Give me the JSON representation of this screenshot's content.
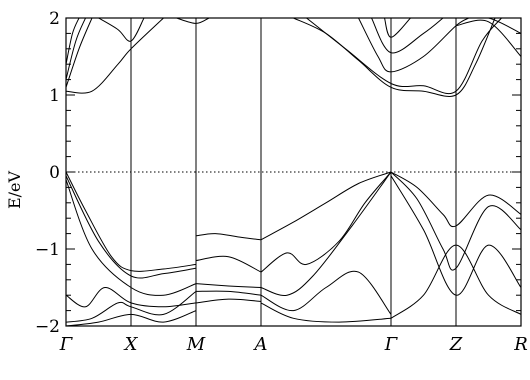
{
  "chart_data": {
    "type": "line",
    "title": "",
    "ylabel": "E/eV",
    "xlabel": "",
    "ylim": [
      -2,
      2
    ],
    "yticks": [
      -2,
      -1,
      0,
      1,
      2
    ],
    "ytick_labels": [
      "−2",
      "−1",
      "0",
      "1",
      "2"
    ],
    "xlim": [
      0,
      7
    ],
    "kpoints": [
      {
        "label": "Γ",
        "x": 0
      },
      {
        "label": "X",
        "x": 1
      },
      {
        "label": "M",
        "x": 2
      },
      {
        "label": "A",
        "x": 3
      },
      {
        "label": "Γ",
        "x": 5
      },
      {
        "label": "Z",
        "x": 6
      },
      {
        "label": "R",
        "x": 7
      }
    ],
    "fermi_level": 0,
    "grid": false,
    "series": [
      {
        "values": [
          [
            0,
            0
          ],
          [
            0.3,
            -0.5
          ],
          [
            0.7,
            -1.1
          ],
          [
            1.0,
            -1.28
          ],
          [
            1.5,
            -1.26
          ],
          [
            2.0,
            -1.2
          ]
        ]
      },
      {
        "values": [
          [
            0,
            -0.05
          ],
          [
            0.5,
            -0.9
          ],
          [
            1.0,
            -1.35
          ],
          [
            1.5,
            -1.32
          ],
          [
            2.0,
            -1.25
          ]
        ]
      },
      {
        "values": [
          [
            0,
            -0.1
          ],
          [
            0.4,
            -1.0
          ],
          [
            1.0,
            -1.5
          ],
          [
            1.5,
            -1.6
          ],
          [
            2.0,
            -1.45
          ]
        ]
      },
      {
        "values": [
          [
            0,
            -1.6
          ],
          [
            0.3,
            -1.75
          ],
          [
            0.6,
            -1.5
          ],
          [
            1.0,
            -1.7
          ],
          [
            1.5,
            -1.75
          ],
          [
            2.0,
            -1.7
          ]
        ]
      },
      {
        "values": [
          [
            0,
            -1.95
          ],
          [
            0.4,
            -1.9
          ],
          [
            0.8,
            -1.7
          ],
          [
            1.0,
            -1.75
          ],
          [
            1.5,
            -1.85
          ],
          [
            2.0,
            -1.55
          ]
        ]
      },
      {
        "values": [
          [
            0,
            -2.0
          ],
          [
            0.5,
            -1.95
          ],
          [
            1.0,
            -1.85
          ],
          [
            1.5,
            -1.95
          ],
          [
            2.0,
            -1.8
          ]
        ]
      },
      {
        "values": [
          [
            2.0,
            -0.83
          ],
          [
            2.3,
            -0.8
          ],
          [
            2.7,
            -0.85
          ],
          [
            3.0,
            -0.88
          ]
        ]
      },
      {
        "values": [
          [
            2.0,
            -1.15
          ],
          [
            2.5,
            -1.1
          ],
          [
            3.0,
            -1.3
          ]
        ]
      },
      {
        "values": [
          [
            2.0,
            -1.45
          ],
          [
            2.5,
            -1.48
          ],
          [
            3.0,
            -1.5
          ]
        ]
      },
      {
        "values": [
          [
            2.0,
            -1.55
          ],
          [
            2.5,
            -1.55
          ],
          [
            3.0,
            -1.6
          ]
        ]
      },
      {
        "values": [
          [
            2.0,
            -1.7
          ],
          [
            2.5,
            -1.65
          ],
          [
            3.0,
            -1.68
          ]
        ]
      },
      {
        "values": [
          [
            3.0,
            -0.88
          ],
          [
            3.5,
            -0.65
          ],
          [
            4.0,
            -0.4
          ],
          [
            4.5,
            -0.15
          ],
          [
            5.0,
            0
          ]
        ]
      },
      {
        "values": [
          [
            3.0,
            -1.3
          ],
          [
            3.4,
            -1.05
          ],
          [
            3.7,
            -1.2
          ],
          [
            4.2,
            -0.9
          ],
          [
            4.6,
            -0.4
          ],
          [
            5.0,
            0
          ]
        ]
      },
      {
        "values": [
          [
            3.0,
            -1.5
          ],
          [
            3.4,
            -1.6
          ],
          [
            3.8,
            -1.35
          ],
          [
            4.4,
            -0.7
          ],
          [
            5.0,
            0
          ]
        ]
      },
      {
        "values": [
          [
            3.0,
            -1.6
          ],
          [
            3.5,
            -1.8
          ],
          [
            4.0,
            -1.5
          ],
          [
            4.5,
            -1.3
          ],
          [
            5.0,
            -1.85
          ]
        ]
      },
      {
        "values": [
          [
            3.0,
            -1.7
          ],
          [
            3.5,
            -1.9
          ],
          [
            4.2,
            -1.95
          ],
          [
            5.0,
            -1.9
          ]
        ]
      },
      {
        "values": [
          [
            5.0,
            0
          ],
          [
            5.4,
            -0.2
          ],
          [
            5.8,
            -0.55
          ],
          [
            6.0,
            -0.7
          ],
          [
            6.5,
            -0.3
          ],
          [
            7.0,
            -0.55
          ]
        ]
      },
      {
        "values": [
          [
            5.0,
            0
          ],
          [
            5.4,
            -0.35
          ],
          [
            5.8,
            -1.0
          ],
          [
            6.0,
            -1.25
          ],
          [
            6.5,
            -0.45
          ],
          [
            7.0,
            -0.75
          ]
        ]
      },
      {
        "values": [
          [
            5.0,
            -0.05
          ],
          [
            5.5,
            -0.75
          ],
          [
            6.0,
            -1.6
          ],
          [
            6.5,
            -0.95
          ],
          [
            7.0,
            -1.5
          ]
        ]
      },
      {
        "values": [
          [
            5.0,
            -1.9
          ],
          [
            5.5,
            -1.6
          ],
          [
            6.0,
            -0.95
          ],
          [
            6.5,
            -1.6
          ],
          [
            7.0,
            -1.85
          ]
        ]
      },
      {
        "values": [
          [
            0,
            1.05
          ],
          [
            0.4,
            1.05
          ],
          [
            0.8,
            1.4
          ],
          [
            1.0,
            1.6
          ],
          [
            1.5,
            2.0
          ]
        ]
      },
      {
        "values": [
          [
            0,
            1.1
          ],
          [
            0.2,
            1.6
          ],
          [
            0.4,
            2.0
          ]
        ]
      },
      {
        "values": [
          [
            0,
            1.2
          ],
          [
            0.15,
            1.7
          ],
          [
            0.3,
            2.0
          ]
        ]
      },
      {
        "values": [
          [
            0,
            1.4
          ],
          [
            0.1,
            1.8
          ],
          [
            0.2,
            2.0
          ]
        ]
      },
      {
        "values": [
          [
            0.5,
            2.0
          ],
          [
            0.8,
            1.85
          ],
          [
            1.0,
            1.7
          ],
          [
            1.2,
            2.0
          ]
        ]
      },
      {
        "values": [
          [
            1.7,
            2.0
          ],
          [
            2.0,
            1.93
          ],
          [
            2.2,
            2.0
          ]
        ]
      },
      {
        "values": [
          [
            3.5,
            2.0
          ],
          [
            4.0,
            1.8
          ],
          [
            4.5,
            1.45
          ],
          [
            5.0,
            1.1
          ],
          [
            5.5,
            1.05
          ],
          [
            6.0,
            1.0
          ],
          [
            6.3,
            1.4
          ],
          [
            6.6,
            2.0
          ]
        ]
      },
      {
        "values": [
          [
            3.7,
            2.0
          ],
          [
            4.3,
            1.6
          ],
          [
            5.0,
            1.15
          ],
          [
            5.5,
            1.12
          ],
          [
            6.0,
            1.05
          ],
          [
            6.4,
            1.7
          ],
          [
            6.7,
            2.0
          ]
        ]
      },
      {
        "values": [
          [
            4.5,
            2.0
          ],
          [
            4.8,
            1.5
          ],
          [
            5.0,
            1.3
          ],
          [
            5.5,
            1.5
          ],
          [
            6.0,
            1.9
          ],
          [
            6.2,
            2.0
          ]
        ]
      },
      {
        "values": [
          [
            4.7,
            2.0
          ],
          [
            5.0,
            1.55
          ],
          [
            5.5,
            1.8
          ],
          [
            5.8,
            2.0
          ]
        ]
      },
      {
        "values": [
          [
            4.9,
            2.0
          ],
          [
            5.0,
            1.75
          ],
          [
            5.3,
            2.0
          ]
        ]
      },
      {
        "values": [
          [
            6.0,
            1.9
          ],
          [
            6.5,
            1.95
          ],
          [
            7.0,
            1.5
          ]
        ]
      },
      {
        "values": [
          [
            6.0,
            2.0
          ],
          [
            6.5,
            2.0
          ],
          [
            7.0,
            1.8
          ]
        ]
      }
    ]
  }
}
